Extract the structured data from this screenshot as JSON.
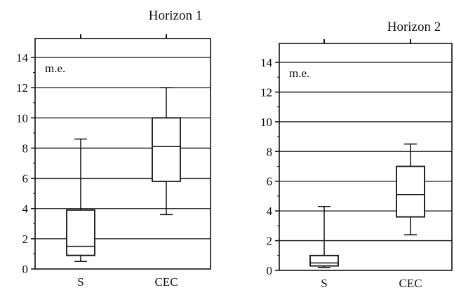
{
  "chart_data": [
    {
      "type": "box",
      "title": "Horizon 1",
      "unit_label": "m.e.",
      "ylim": [
        0,
        14
      ],
      "yticks": [
        "0",
        "2",
        "4",
        "6",
        "8",
        "10",
        "12",
        "14"
      ],
      "grid": "horizontal",
      "categories": [
        "S",
        "CEC"
      ],
      "boxes": [
        {
          "category": "S",
          "min": 0.5,
          "q1": 0.9,
          "median": 1.5,
          "q3": 3.9,
          "max": 8.6
        },
        {
          "category": "CEC",
          "min": 3.6,
          "q1": 5.8,
          "median": 8.1,
          "q3": 10.0,
          "max": 12.0
        }
      ]
    },
    {
      "type": "box",
      "title": "Horizon 2",
      "unit_label": "m.e.",
      "ylim": [
        0,
        14
      ],
      "yticks": [
        "0",
        "2",
        "4",
        "6",
        "8",
        "10",
        "12",
        "14"
      ],
      "grid": "horizontal",
      "categories": [
        "S",
        "CEC"
      ],
      "boxes": [
        {
          "category": "S",
          "min": 0.2,
          "q1": 0.3,
          "median": 0.5,
          "q3": 1.0,
          "max": 4.3
        },
        {
          "category": "CEC",
          "min": 2.4,
          "q1": 3.6,
          "median": 5.1,
          "q3": 7.0,
          "max": 8.5
        }
      ]
    }
  ]
}
